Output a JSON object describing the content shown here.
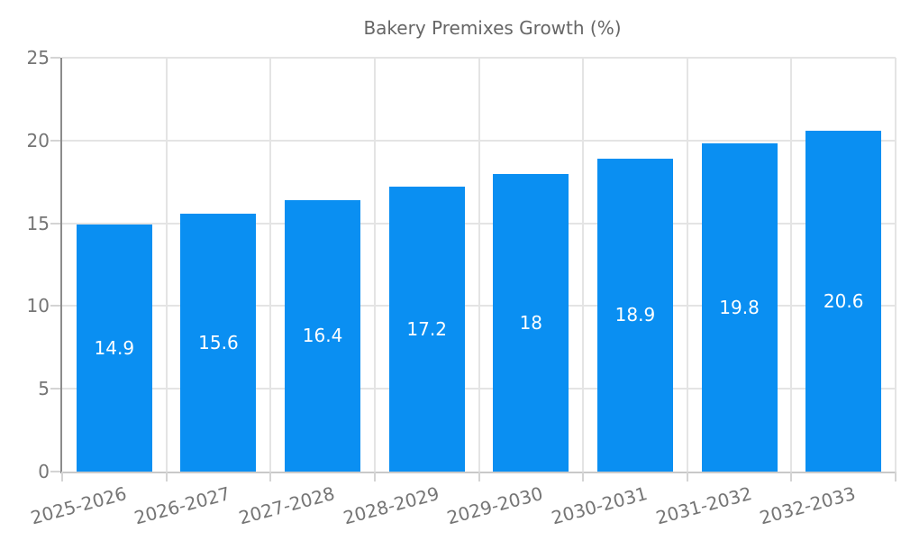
{
  "chart_data": {
    "type": "bar",
    "legend": "Bakery Premixes Growth (%)",
    "legend_position": "top",
    "categories": [
      "2025-2026",
      "2026-2027",
      "2027-2028",
      "2028-2029",
      "2029-2030",
      "2030-2031",
      "2031-2032",
      "2032-2033"
    ],
    "values": [
      14.9,
      15.6,
      16.4,
      17.2,
      18,
      18.9,
      19.8,
      20.6
    ],
    "value_labels": [
      "14.9",
      "15.6",
      "16.4",
      "17.2",
      "18",
      "18.9",
      "19.8",
      "20.6"
    ],
    "title": "",
    "xlabel": "",
    "ylabel": "",
    "ylim": [
      0,
      25
    ],
    "yticks": [
      0,
      5,
      10,
      15,
      20,
      25
    ],
    "grid": true,
    "x_tick_rotation_deg": -15,
    "colors": {
      "bar": "#0a8ff2",
      "value_label": "#ffffff",
      "axis_text": "#757575",
      "legend_text": "#666666",
      "gridline": "#e4e4e4"
    }
  }
}
